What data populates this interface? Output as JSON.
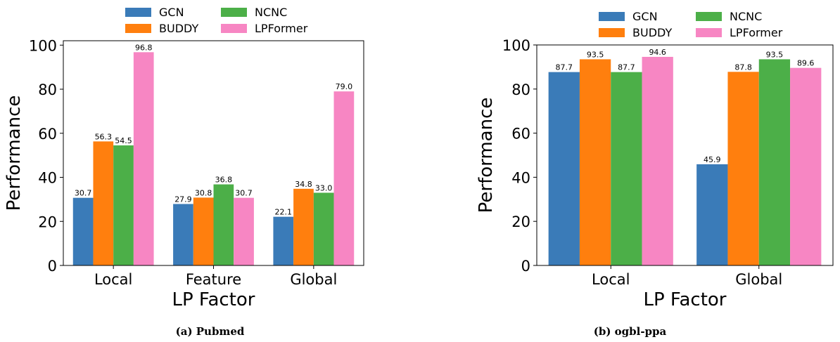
{
  "colors": {
    "GCN": "#3a7bb8",
    "BUDDY": "#ff7f0e",
    "NCNC": "#4caf48",
    "LPFormer": "#f786c3"
  },
  "chart_data": [
    {
      "type": "bar",
      "caption": "(a) Pubmed",
      "xlabel": "LP Factor",
      "ylabel": "Performance",
      "ylim": [
        0,
        102
      ],
      "yticks": [
        0,
        20,
        40,
        60,
        80,
        100
      ],
      "grid": false,
      "legend": "top, outside, 2 columns",
      "categories": [
        "Local",
        "Feature",
        "Global"
      ],
      "series": [
        {
          "name": "GCN",
          "values": [
            30.7,
            27.9,
            22.1
          ],
          "labels": [
            "30.7",
            "27.9",
            "22.1"
          ]
        },
        {
          "name": "BUDDY",
          "values": [
            56.3,
            30.8,
            34.8
          ],
          "labels": [
            "56.3",
            "30.8",
            "34.8"
          ]
        },
        {
          "name": "NCNC",
          "values": [
            54.5,
            36.8,
            33.0
          ],
          "labels": [
            "54.5",
            "36.8",
            "33.0"
          ]
        },
        {
          "name": "LPFormer",
          "values": [
            96.8,
            30.7,
            79.0
          ],
          "labels": [
            "96.8",
            "30.7",
            "79.0"
          ]
        }
      ]
    },
    {
      "type": "bar",
      "caption": "(b) ogbl-ppa",
      "xlabel": "LP Factor",
      "ylabel": "Performance",
      "ylim": [
        0,
        100
      ],
      "yticks": [
        0,
        20,
        40,
        60,
        80,
        100
      ],
      "grid": false,
      "legend": "top, outside, 2 columns",
      "categories": [
        "Local",
        "Global"
      ],
      "series": [
        {
          "name": "GCN",
          "values": [
            87.7,
            45.9
          ],
          "labels": [
            "87.7",
            "45.9"
          ]
        },
        {
          "name": "BUDDY",
          "values": [
            93.5,
            87.8
          ],
          "labels": [
            "93.5",
            "87.8"
          ]
        },
        {
          "name": "NCNC",
          "values": [
            87.7,
            93.5
          ],
          "labels": [
            "87.7",
            "93.5"
          ]
        },
        {
          "name": "LPFormer",
          "values": [
            94.6,
            89.6
          ],
          "labels": [
            "94.6",
            "89.6"
          ]
        }
      ]
    }
  ]
}
